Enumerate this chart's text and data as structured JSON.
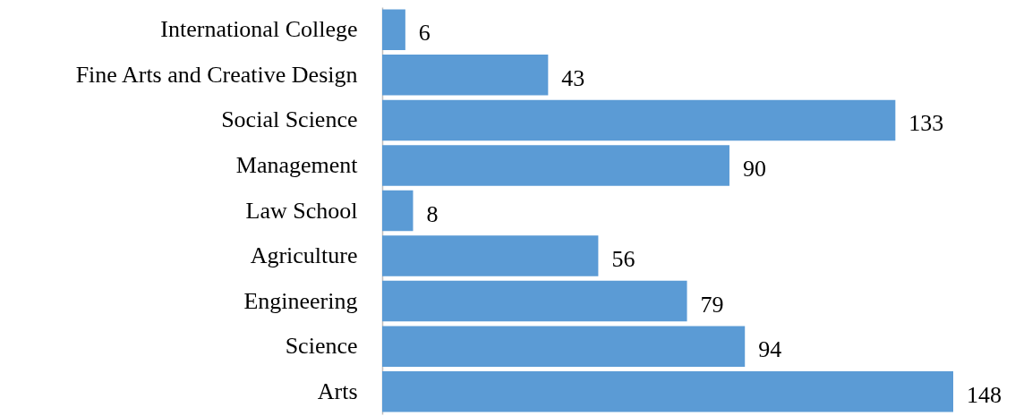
{
  "chart_data": {
    "type": "bar",
    "orientation": "horizontal",
    "categories": [
      "International College",
      "Fine Arts and Creative Design",
      "Social Science",
      "Management",
      "Law School",
      "Agriculture",
      "Engineering",
      "Science",
      "Arts"
    ],
    "values": [
      6,
      43,
      133,
      90,
      8,
      56,
      79,
      94,
      148
    ],
    "color": "#5b9bd5",
    "data_labels": true
  }
}
